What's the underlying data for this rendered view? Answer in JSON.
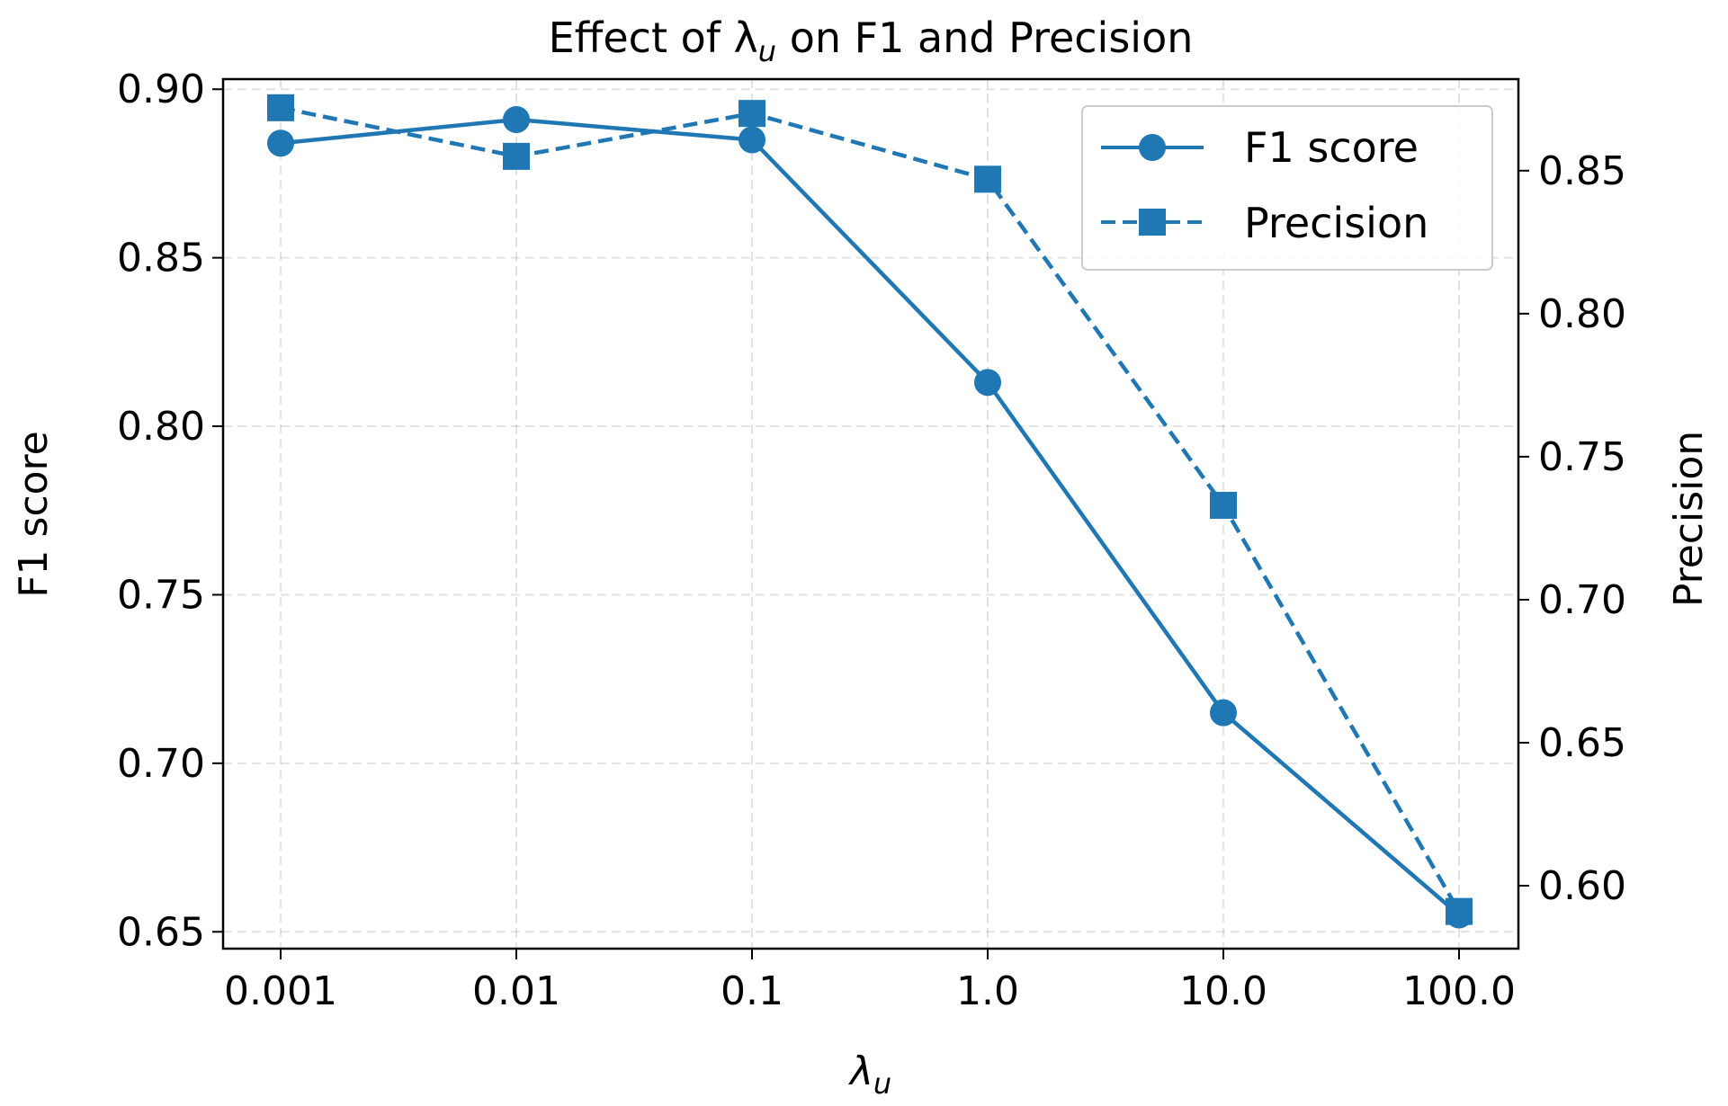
{
  "chart_data": {
    "type": "line",
    "title": "Effect of λ",
    "title_suffix": " on F1 and Precision",
    "title_sub": "u",
    "xlabel": "λ",
    "xlabel_sub": "u",
    "ylabel_left": "F1 score",
    "ylabel_right": "Precision",
    "categories": [
      "0.001",
      "0.01",
      "0.1",
      "1.0",
      "10.0",
      "100.0"
    ],
    "ylim_left": [
      0.645,
      0.903
    ],
    "ylim_right": [
      0.578,
      0.882
    ],
    "yticks_left": [
      "0.65",
      "0.70",
      "0.75",
      "0.80",
      "0.85",
      "0.90"
    ],
    "yticks_right": [
      "0.60",
      "0.65",
      "0.70",
      "0.75",
      "0.80",
      "0.85"
    ],
    "grid": true,
    "legend_position": "top-right",
    "series": [
      {
        "name": "F1 score",
        "axis": "left",
        "marker": "circle",
        "linestyle": "solid",
        "color": "#1f77b4",
        "values": [
          0.884,
          0.891,
          0.885,
          0.813,
          0.715,
          0.655
        ]
      },
      {
        "name": "Precision",
        "axis": "right",
        "marker": "square",
        "linestyle": "dashed",
        "color": "#1f77b4",
        "values": [
          0.872,
          0.855,
          0.87,
          0.847,
          0.733,
          0.591
        ]
      }
    ]
  }
}
